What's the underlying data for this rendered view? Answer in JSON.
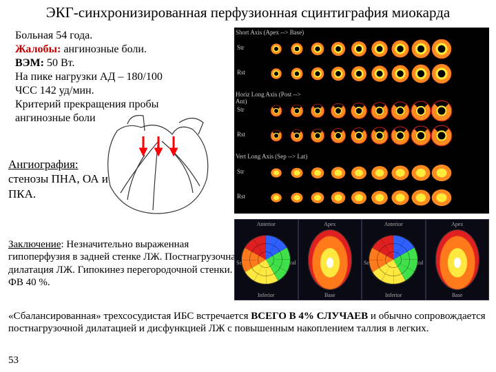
{
  "title": "ЭКГ-синхронизированная перфузионная сцинтиграфия миокарда",
  "patient": {
    "age_line": "Больная 54 года.",
    "complaints_label": "Жалобы:",
    "complaints_text": " ангинозные боли.",
    "vem_label": "ВЭМ:",
    "vem_text": " 50 Вт.",
    "bp_line": "На пике нагрузки АД – 180/100",
    "hr_line": "ЧСС 142 уд/мин.",
    "criterion_l1": "Критерий прекращения пробы",
    "criterion_l2": "ангинозные боли"
  },
  "angio": {
    "label": "Ангиография:",
    "l1": "стенозы ПНА, ОА и",
    "l2": "ПКА."
  },
  "conclusion": {
    "label": "Заключение",
    "text": ": Незначительно выраженная гипоперфузия в задней стенке ЛЖ. Постнагрузочная дилатация ЛЖ. Гипокинез перегородочной стенки. ФВ 40 %."
  },
  "footer": {
    "p1": "«Сбалансированная» трехсосудистая ИБС встречается ",
    "bold": "ВСЕГО В 4% СЛУЧАЕВ",
    "p2": " и обычно сопровождается постнагрузочной дилатацией и дисфункцией ЛЖ с повышенным накоплением таллия в легких."
  },
  "page_number": "53",
  "scint": {
    "axis_labels": {
      "short": "Short Axis (Apex --> Base)",
      "horiz": "Horiz Long Axis (Post --> Ant)",
      "vert": "Vert Long Axis (Sep --> Lat)"
    },
    "row_labels": [
      "Str",
      "Rst",
      "Str",
      "Rst",
      "Str",
      "Rst"
    ],
    "slices_per_row": 9,
    "colors": {
      "bg": "#000000",
      "hot_center": "#ffec3a",
      "hot_mid": "#ff8a1f",
      "hot_edge": "#d32020",
      "label": "#cccccc"
    }
  },
  "polar": {
    "top_labels": [
      "Anterior",
      "Apex",
      "Anterior",
      "Apex"
    ],
    "side_labels": [
      "Septal",
      "Lateral",
      "Septal",
      "Lateral"
    ],
    "bottom_labels": [
      "Inferior",
      "Base",
      "Inferior",
      "Base"
    ],
    "colors": {
      "bg": "#0a0a14",
      "grid": "#2a2a40",
      "blue": "#2e5fff",
      "green": "#3fe04a",
      "yellow": "#ffe940",
      "orange": "#ff7a1a",
      "red": "#e02020"
    }
  },
  "diagram": {
    "arrow_color": "#ff0000",
    "line_color": "#333333"
  }
}
